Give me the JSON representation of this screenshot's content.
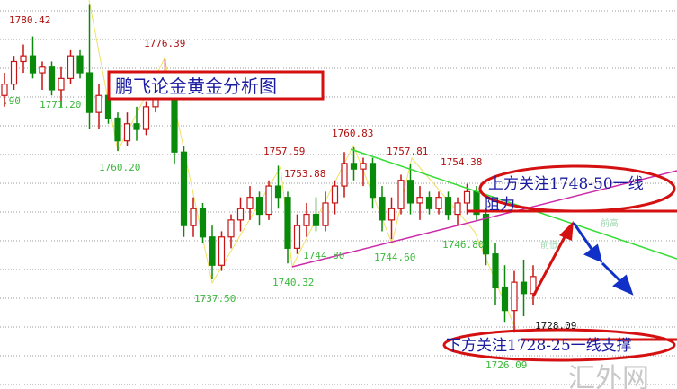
{
  "chart_data": {
    "type": "candlestick",
    "title": "鹏飞论金黄金分析图",
    "grid": true,
    "ylim": [
      1724,
      1787
    ],
    "candles": [
      [
        1770,
        1774,
        1768,
        1772
      ],
      [
        1772,
        1777,
        1771,
        1776
      ],
      [
        1776,
        1779,
        1774,
        1777
      ],
      [
        1777,
        1780.42,
        1773,
        1774
      ],
      [
        1774,
        1776,
        1771,
        1775
      ],
      [
        1775,
        1776,
        1770,
        1771
      ],
      [
        1771,
        1775,
        1768,
        1773
      ],
      [
        1773,
        1778,
        1772,
        1777
      ],
      [
        1777,
        1778,
        1773,
        1774
      ],
      [
        1774,
        1786,
        1764,
        1767
      ],
      [
        1767,
        1772,
        1764,
        1770
      ],
      [
        1770,
        1771,
        1765,
        1766
      ],
      [
        1766,
        1767,
        1760.2,
        1762
      ],
      [
        1762,
        1767,
        1761,
        1765
      ],
      [
        1765,
        1768,
        1762,
        1764
      ],
      [
        1764,
        1769,
        1763,
        1768
      ],
      [
        1768,
        1774,
        1767,
        1772
      ],
      [
        1772,
        1776.39,
        1770,
        1773
      ],
      [
        1773,
        1774,
        1758,
        1760
      ],
      [
        1760,
        1761,
        1745,
        1747
      ],
      [
        1747,
        1752,
        1745,
        1750
      ],
      [
        1750,
        1751,
        1744,
        1745
      ],
      [
        1745,
        1747,
        1737.5,
        1740
      ],
      [
        1740,
        1746,
        1739,
        1745
      ],
      [
        1745,
        1749,
        1743,
        1748
      ],
      [
        1748,
        1752,
        1746,
        1750
      ],
      [
        1750,
        1754,
        1748,
        1752
      ],
      [
        1752,
        1753,
        1747,
        1749
      ],
      [
        1749,
        1755,
        1748,
        1754
      ],
      [
        1754,
        1757.59,
        1750,
        1752
      ],
      [
        1752,
        1753,
        1740.32,
        1743
      ],
      [
        1743,
        1749,
        1742,
        1747
      ],
      [
        1747,
        1751,
        1745,
        1749
      ],
      [
        1749,
        1752,
        1746,
        1747
      ],
      [
        1747,
        1753,
        1746,
        1751
      ],
      [
        1751,
        1755,
        1749,
        1754
      ],
      [
        1754,
        1760,
        1752,
        1758
      ],
      [
        1758,
        1760.83,
        1755,
        1757
      ],
      [
        1757,
        1759,
        1754,
        1758
      ],
      [
        1758,
        1759,
        1750,
        1752
      ],
      [
        1752,
        1754,
        1746,
        1748
      ],
      [
        1748,
        1752,
        1744.6,
        1750
      ],
      [
        1750,
        1756,
        1749,
        1755
      ],
      [
        1755,
        1757.81,
        1749,
        1751
      ],
      [
        1751,
        1754,
        1748,
        1752
      ],
      [
        1752,
        1753,
        1749,
        1750
      ],
      [
        1750,
        1753,
        1749,
        1752
      ],
      [
        1752,
        1753,
        1748,
        1749
      ],
      [
        1749,
        1752,
        1747,
        1751
      ],
      [
        1751,
        1754.38,
        1749,
        1753
      ],
      [
        1753,
        1754,
        1748,
        1749
      ],
      [
        1749,
        1750,
        1740,
        1742
      ],
      [
        1742,
        1744,
        1733,
        1736
      ],
      [
        1736,
        1740,
        1730,
        1732
      ],
      [
        1732,
        1739,
        1728.09,
        1737
      ],
      [
        1737,
        1741,
        1731,
        1735
      ],
      [
        1735,
        1740,
        1733,
        1738
      ]
    ],
    "high_labels": [
      "1780.42",
      "1776.39",
      "1757.59",
      "1753.88",
      "1760.83",
      "1757.81",
      "1754.38",
      "1728.09"
    ],
    "low_labels": [
      ".90",
      "1771.20",
      "1760.20",
      "1737.50",
      "1740.32",
      "1744.80",
      "1744.60",
      "1746.80",
      "1726.09"
    ],
    "markers": {
      "prev_high": "前高",
      "prev_low": "前低"
    },
    "annotations": {
      "resistance_1": "上方关注1748-50一线",
      "resistance_2": "阻力",
      "support": "下方关注1728-25一线支撑"
    },
    "colors": {
      "up": "#c81414",
      "down": "#0a8a0a",
      "annotation": "#1a1aa0",
      "highlight": "#d41010",
      "trend_down": "#33dd33",
      "trend_up": "#cc2aa8",
      "arrow_down": "#1030c8"
    }
  },
  "watermark": "汇外网"
}
